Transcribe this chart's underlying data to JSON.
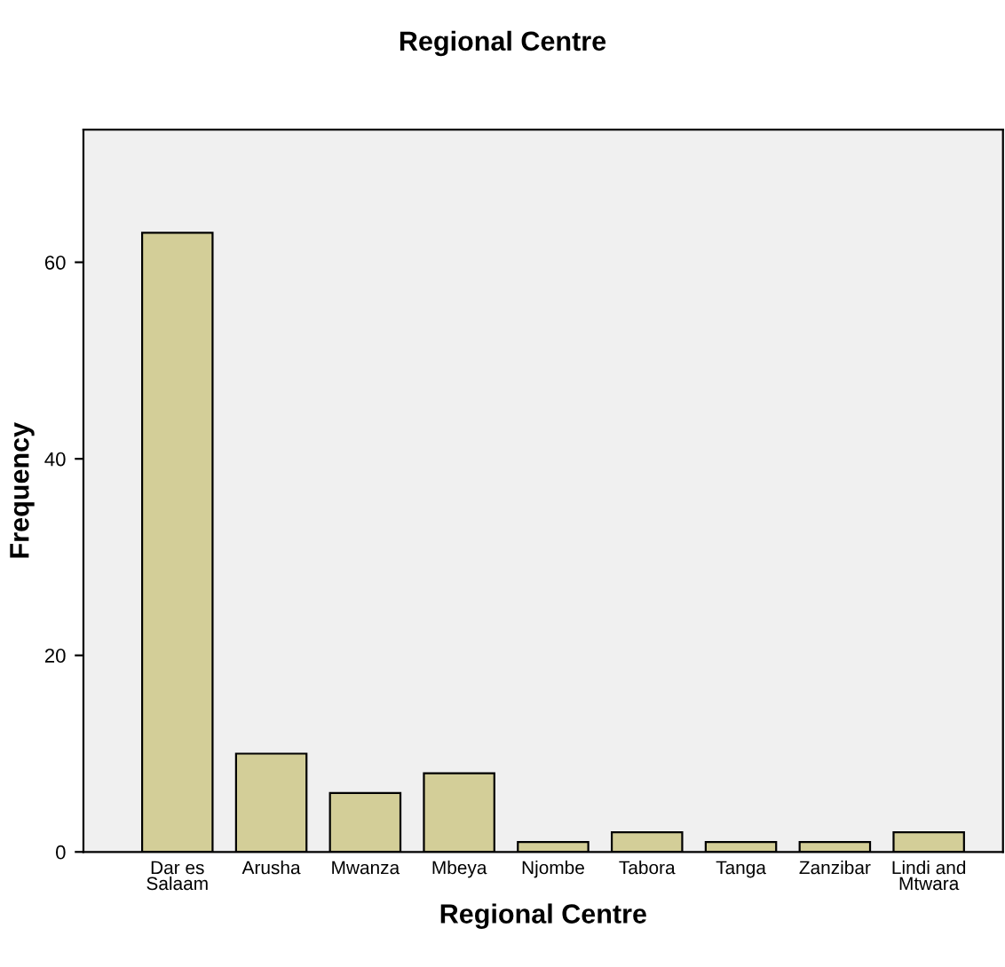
{
  "chart_data": {
    "type": "bar",
    "title": "Regional Centre",
    "xlabel": "Regional Centre",
    "ylabel": "Frequency",
    "categories": [
      "Dar es\nSalaam",
      "Arusha",
      "Mwanza",
      "Mbeya",
      "Njombe",
      "Tabora",
      "Tanga",
      "Zanzibar",
      "Lindi and\nMtwara"
    ],
    "values": [
      63,
      10,
      6,
      8,
      1,
      2,
      1,
      1,
      2
    ],
    "color": "#d3ce98",
    "ylim": [
      0,
      73.5
    ],
    "yticks": [
      0,
      20,
      40,
      60
    ],
    "grid": false,
    "legend": false
  }
}
